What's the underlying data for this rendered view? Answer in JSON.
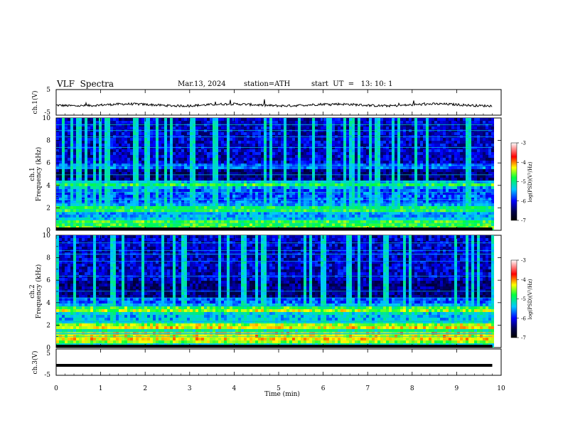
{
  "header": {
    "title": "VLF  Spectra",
    "date": "Mar.13, 2024",
    "station": "station=ATH",
    "start": "start  UT  =   13: 10: 1"
  },
  "chart_data": [
    {
      "type": "line",
      "panel": "ch1-waveform",
      "ylabel": "ch.1(V)",
      "ylim": [
        -5,
        5
      ],
      "yticks": [
        "5",
        "-5"
      ],
      "xlim": [
        0,
        10
      ],
      "line_color": "#000000"
    },
    {
      "type": "heatmap",
      "panel": "ch1-spectrogram",
      "ylabel_line1": "ch.1",
      "ylabel_line2": "Frequency  (kHz)",
      "ylim": [
        0,
        10
      ],
      "yticks": [
        "0",
        "2",
        "4",
        "6",
        "8",
        "10"
      ],
      "xlim": [
        0,
        9.8
      ],
      "colorbar": {
        "label": "log(PSD)(V²/Hz)",
        "range": [
          -7,
          -3
        ],
        "ticks": [
          "-3",
          "-4",
          "-5",
          "-6",
          "-7"
        ]
      },
      "bands_khz": [
        2.0,
        4.2,
        5.8,
        0.8,
        0.3
      ]
    },
    {
      "type": "heatmap",
      "panel": "ch2-spectrogram",
      "ylabel_line1": "ch.2",
      "ylabel_line2": "Frequency  (kHz)",
      "ylim": [
        0,
        10
      ],
      "yticks": [
        "0",
        "2",
        "4",
        "6",
        "8",
        "10"
      ],
      "xlim": [
        0,
        9.8
      ],
      "colorbar": {
        "label": "log(PSD)(V²/Hz)",
        "range": [
          -7,
          -3
        ],
        "ticks": [
          "-3",
          "-4",
          "-5",
          "-6",
          "-7"
        ]
      },
      "bands_khz": [
        2.0,
        3.5,
        1.3,
        0.8
      ]
    },
    {
      "type": "line",
      "panel": "ch3-waveform",
      "ylabel": "ch.3(V)",
      "ylim": [
        -5,
        5
      ],
      "yticks": [
        "5",
        "-5"
      ],
      "xlim": [
        0,
        10
      ],
      "level_v": -1.2,
      "line_color": "#000000"
    }
  ],
  "xaxis": {
    "label": "Time  (min)",
    "ticks": [
      "0",
      "1",
      "2",
      "3",
      "4",
      "5",
      "6",
      "7",
      "8",
      "9",
      "10"
    ]
  }
}
